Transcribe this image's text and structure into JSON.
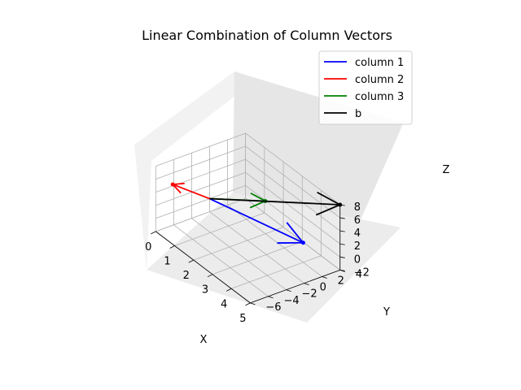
{
  "chart_data": {
    "type": "line",
    "projection": "3d",
    "title": "Linear Combination of Column Vectors",
    "xlabel": "X",
    "ylabel": "Y",
    "zlabel": "Z",
    "xlim": [
      0,
      5
    ],
    "ylim": [
      -6,
      4
    ],
    "zlim": [
      -2,
      8
    ],
    "x_ticks": [
      "0",
      "1",
      "2",
      "3",
      "4",
      "5"
    ],
    "y_ticks": [
      "−6",
      "−4",
      "−2",
      "0",
      "2",
      "4"
    ],
    "z_ticks": [
      "−2",
      "0",
      "2",
      "4",
      "6",
      "8"
    ],
    "grid": true,
    "legend_position": "top-right",
    "series": [
      {
        "name": "column 1",
        "color": "#0000ff",
        "start": [
          0,
          0,
          0
        ],
        "end": [
          4,
          2,
          1
        ]
      },
      {
        "name": "column 2",
        "color": "#ff0000",
        "start": [
          0,
          0,
          0
        ],
        "end": [
          -1,
          -2,
          1
        ]
      },
      {
        "name": "column 3",
        "color": "#008000",
        "start": [
          0,
          0,
          0
        ],
        "end": [
          2,
          2,
          3
        ]
      },
      {
        "name": "b",
        "color": "#000000",
        "start": [
          0,
          0,
          0
        ],
        "end": [
          5,
          4,
          8
        ]
      }
    ]
  }
}
